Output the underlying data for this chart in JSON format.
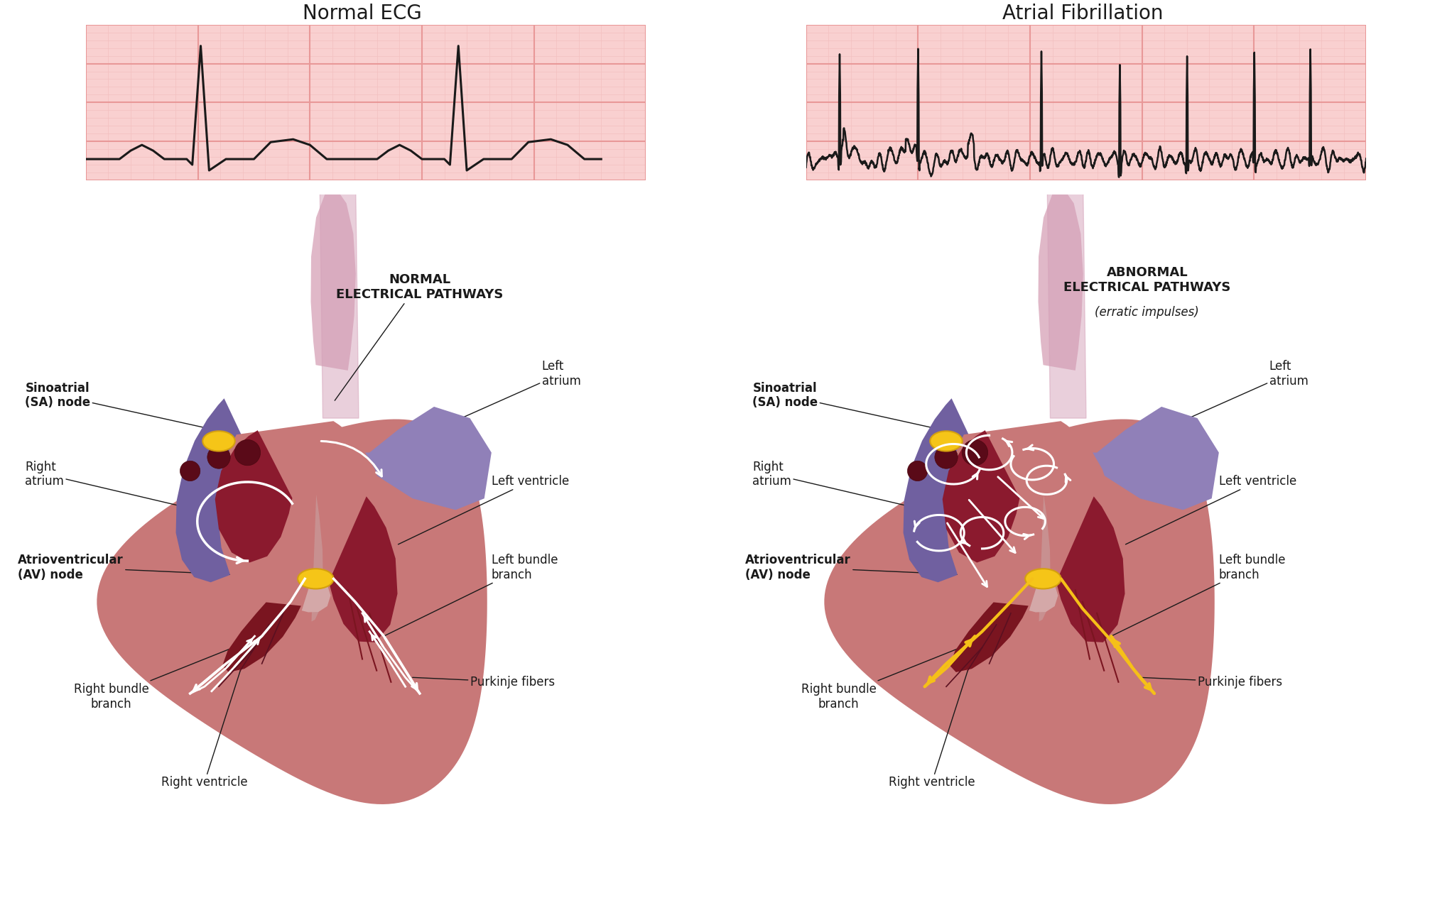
{
  "bg_color": "#ffffff",
  "ecg_grid_bg": "#f9d0d0",
  "ecg_grid_major": "#e89898",
  "ecg_grid_minor": "#f3c0c0",
  "ecg_line_color": "#1a1a1a",
  "title1": "Normal ECG",
  "title2": "Atrial Fibrillation",
  "label1": "NORMAL\nELECTRICAL PATHWAYS",
  "label2": "ABNORMAL\nELECTRICAL PATHWAYS\n(erratic impulses)",
  "heart_outer_color": "#c87878",
  "heart_wall_color": "#c08080",
  "right_atrium_outer": "#7060a0",
  "right_atrium_inner": "#8b1a30",
  "left_chamber_color": "#8b1a2e",
  "septum_color": "#c89090",
  "valve_color": "#d4a0a0",
  "sa_node_color": "#f5c518",
  "av_node_color": "#f5c518",
  "aorta_color": "#e0b0c0",
  "pulm_artery_color": "#8070b0",
  "pulm_vein_color": "#9080c0",
  "pathway_white": "#ffffff",
  "purkinje_yellow": "#f5c018",
  "label_color": "#1a1a1a",
  "line_color": "#1a1a1a"
}
